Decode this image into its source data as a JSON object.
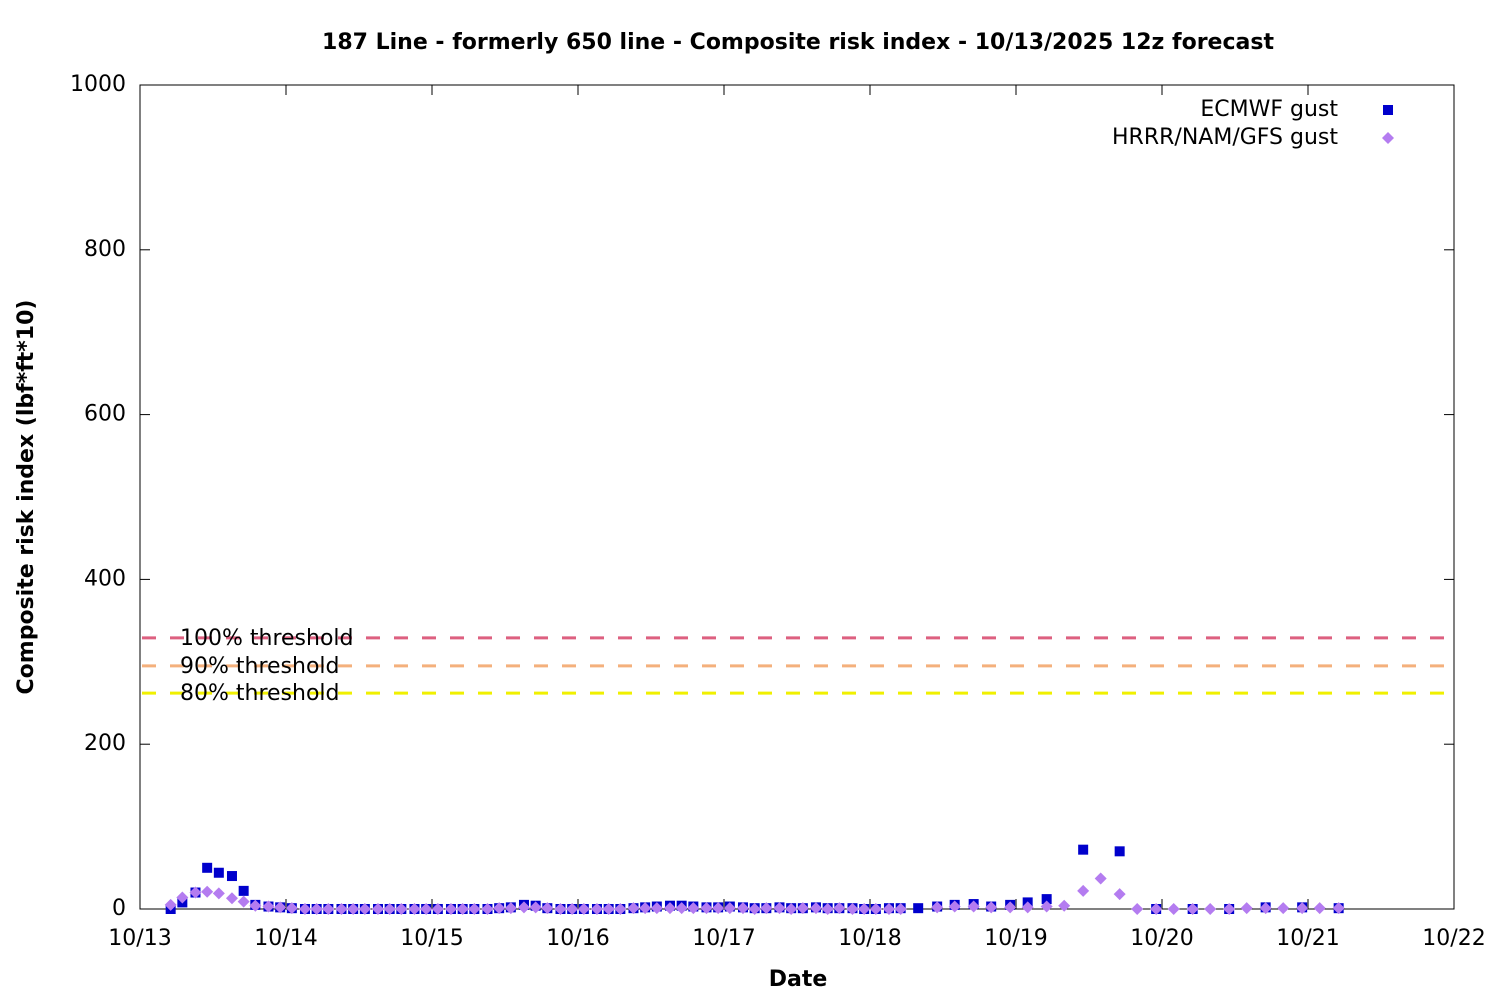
{
  "chart_data": {
    "type": "scatter",
    "title": "187 Line - formerly 650 line - Composite risk index - 10/13/2025 12z forecast",
    "xlabel": "Date",
    "ylabel": "Composite risk index (lbf*ft*10)",
    "xlim": [
      13,
      22
    ],
    "xticks": [
      {
        "value": 13,
        "label": "10/13"
      },
      {
        "value": 14,
        "label": "10/14"
      },
      {
        "value": 15,
        "label": "10/15"
      },
      {
        "value": 16,
        "label": "10/16"
      },
      {
        "value": 17,
        "label": "10/17"
      },
      {
        "value": 18,
        "label": "10/18"
      },
      {
        "value": 19,
        "label": "10/19"
      },
      {
        "value": 20,
        "label": "10/20"
      },
      {
        "value": 21,
        "label": "10/21"
      },
      {
        "value": 22,
        "label": "10/22"
      }
    ],
    "ylim": [
      0,
      1000
    ],
    "yticks": [
      0,
      200,
      400,
      600,
      800,
      1000
    ],
    "legend": "upper right",
    "series": [
      {
        "name": "ECMWF gust",
        "color": "#0000cc",
        "marker": "square",
        "x": [
          13.21,
          13.29,
          13.38,
          13.46,
          13.54,
          13.63,
          13.71,
          13.79,
          13.88,
          13.96,
          14.04,
          14.13,
          14.21,
          14.29,
          14.38,
          14.46,
          14.54,
          14.63,
          14.71,
          14.79,
          14.88,
          14.96,
          15.04,
          15.13,
          15.21,
          15.29,
          15.38,
          15.46,
          15.54,
          15.63,
          15.71,
          15.79,
          15.88,
          15.96,
          16.04,
          16.13,
          16.21,
          16.29,
          16.38,
          16.46,
          16.54,
          16.63,
          16.71,
          16.79,
          16.88,
          16.96,
          17.04,
          17.13,
          17.21,
          17.29,
          17.38,
          17.46,
          17.54,
          17.63,
          17.71,
          17.79,
          17.88,
          17.96,
          18.04,
          18.13,
          18.21,
          18.33,
          18.46,
          18.58,
          18.71,
          18.83,
          18.96,
          19.08,
          19.21,
          19.46,
          19.71,
          19.96,
          20.21,
          20.46,
          20.71,
          20.96,
          21.21
        ],
        "values": [
          0,
          8,
          20,
          50,
          44,
          40,
          22,
          5,
          3,
          2,
          1,
          0,
          0,
          0,
          0,
          0,
          0,
          0,
          0,
          0,
          0,
          0,
          0,
          0,
          0,
          0,
          0,
          1,
          2,
          5,
          4,
          1,
          0,
          0,
          0,
          0,
          0,
          0,
          1,
          2,
          3,
          4,
          4,
          3,
          2,
          2,
          3,
          2,
          1,
          1,
          2,
          1,
          1,
          2,
          1,
          1,
          1,
          0,
          0,
          1,
          1,
          1,
          3,
          5,
          6,
          3,
          5,
          8,
          12,
          72,
          70,
          0,
          0,
          0,
          2,
          2,
          1
        ]
      },
      {
        "name": "HRRR/NAM/GFS gust",
        "color": "#b47cf0",
        "marker": "diamond",
        "x": [
          13.21,
          13.29,
          13.38,
          13.46,
          13.54,
          13.63,
          13.71,
          13.79,
          13.88,
          13.96,
          14.04,
          14.13,
          14.21,
          14.29,
          14.38,
          14.46,
          14.54,
          14.63,
          14.71,
          14.79,
          14.88,
          14.96,
          15.04,
          15.13,
          15.21,
          15.29,
          15.38,
          15.46,
          15.54,
          15.63,
          15.71,
          15.79,
          15.88,
          15.96,
          16.04,
          16.13,
          16.21,
          16.29,
          16.38,
          16.46,
          16.54,
          16.63,
          16.71,
          16.79,
          16.88,
          16.96,
          17.04,
          17.13,
          17.21,
          17.29,
          17.38,
          17.46,
          17.54,
          17.63,
          17.71,
          17.79,
          17.88,
          17.96,
          18.04,
          18.13,
          18.21,
          18.46,
          18.58,
          18.71,
          18.83,
          18.96,
          19.08,
          19.21,
          19.33,
          19.46,
          19.58,
          19.71,
          19.83,
          19.96,
          20.08,
          20.21,
          20.33,
          20.46,
          20.58,
          20.71,
          20.83,
          20.96,
          21.08,
          21.21
        ],
        "values": [
          5,
          14,
          20,
          21,
          19,
          13,
          9,
          4,
          3,
          2,
          1,
          0,
          0,
          0,
          0,
          0,
          0,
          0,
          0,
          0,
          0,
          0,
          0,
          0,
          0,
          0,
          0,
          1,
          1,
          2,
          2,
          1,
          0,
          0,
          0,
          0,
          0,
          0,
          1,
          1,
          1,
          1,
          1,
          1,
          1,
          1,
          1,
          1,
          0,
          1,
          1,
          0,
          1,
          1,
          0,
          1,
          0,
          0,
          0,
          0,
          0,
          2,
          3,
          3,
          2,
          2,
          2,
          3,
          4,
          22,
          37,
          18,
          0,
          0,
          0,
          0,
          0,
          0,
          1,
          1,
          1,
          1,
          1,
          1
        ]
      }
    ],
    "thresholds": [
      {
        "label": "100% threshold",
        "value": 329,
        "color": "#dd6080"
      },
      {
        "label": "90% threshold",
        "value": 295,
        "color": "#f4b07c"
      },
      {
        "label": "80% threshold",
        "value": 262,
        "color": "#f0f000"
      }
    ]
  }
}
